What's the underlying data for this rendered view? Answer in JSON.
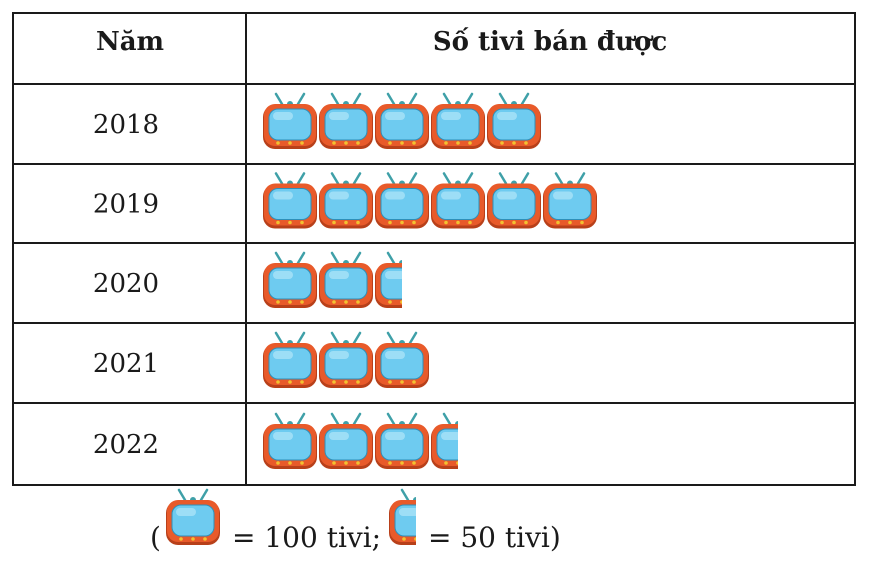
{
  "chart_data": {
    "type": "table",
    "columns": [
      "Năm",
      "Số tivi bán được"
    ],
    "rows": [
      {
        "year": "2018",
        "value": 500
      },
      {
        "year": "2019",
        "value": 600
      },
      {
        "year": "2020",
        "value": 250
      },
      {
        "year": "2021",
        "value": 300
      },
      {
        "year": "2022",
        "value": 350
      }
    ],
    "legend": {
      "open_paren": "(",
      "full_label": "= 100 tivi;",
      "half_label": "= 50 tivi)",
      "full_value": 100,
      "half_value": 50
    },
    "colors": {
      "tv_body": "#e85a2a",
      "tv_body_dark": "#b8401a",
      "tv_screen": "#6ecbf0",
      "tv_screen_light": "#a9e2f8",
      "tv_antenna": "#3fa0a8",
      "tv_knob": "#f2c230",
      "border": "#1a1a1a"
    }
  }
}
